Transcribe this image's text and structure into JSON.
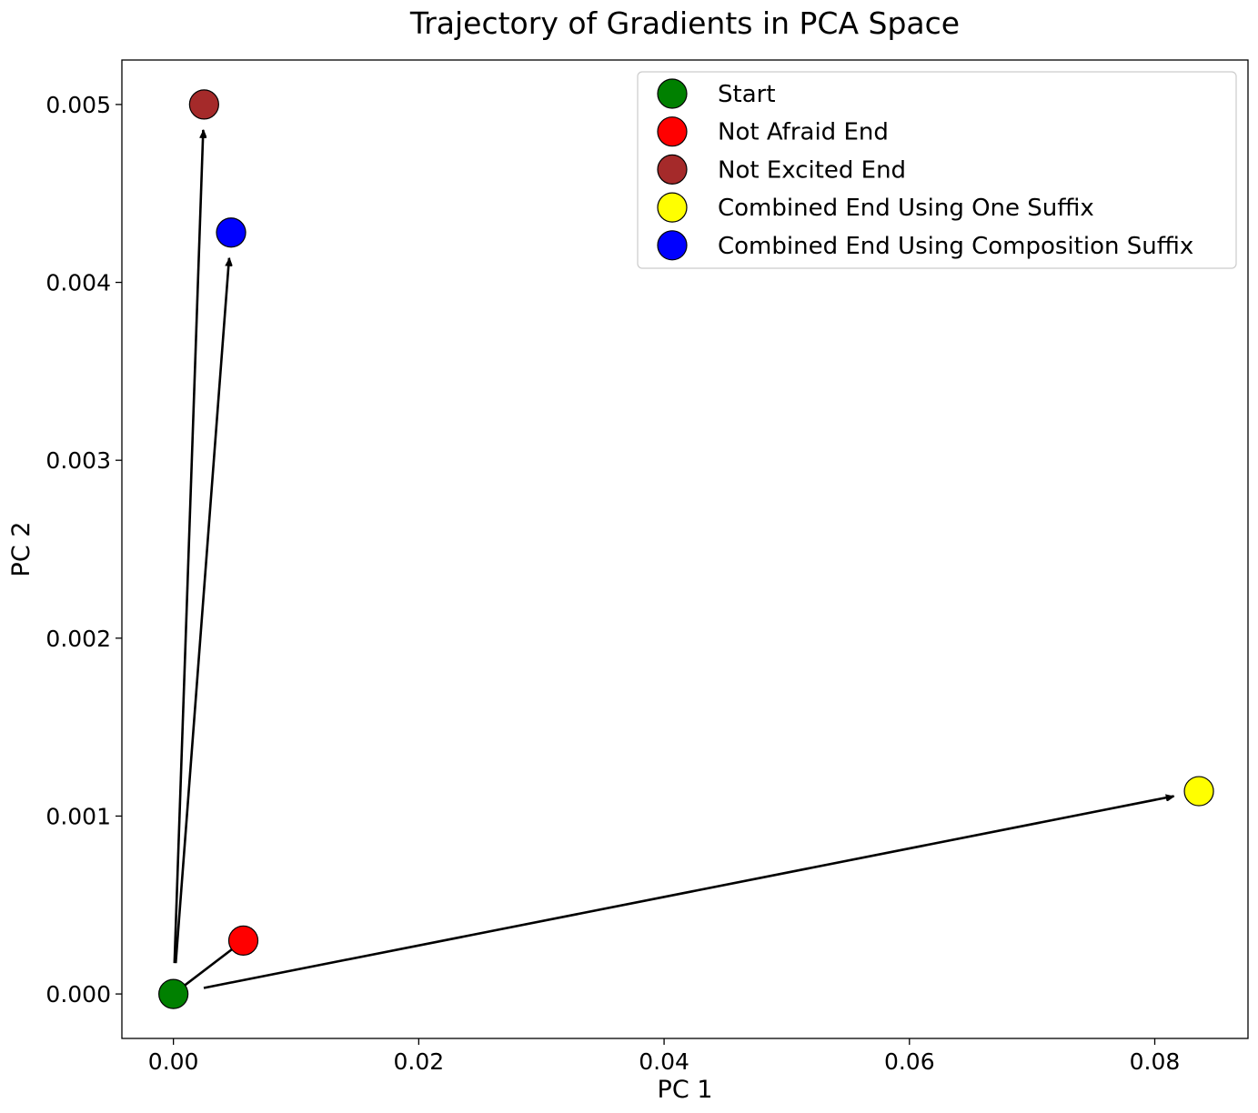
{
  "chart_data": {
    "type": "scatter",
    "title": "Trajectory of Gradients in PCA Space",
    "xlabel": "PC 1",
    "ylabel": "PC 2",
    "xlim": [
      -0.0042,
      0.0876
    ],
    "ylim": [
      -0.00025,
      0.00525
    ],
    "xticks": [
      0.0,
      0.02,
      0.04,
      0.06,
      0.08
    ],
    "xtick_labels": [
      "0.00",
      "0.02",
      "0.04",
      "0.06",
      "0.08"
    ],
    "yticks": [
      0.0,
      0.001,
      0.002,
      0.003,
      0.004,
      0.005
    ],
    "ytick_labels": [
      "0.000",
      "0.001",
      "0.002",
      "0.003",
      "0.004",
      "0.005"
    ],
    "grid": false,
    "legend_position": "top-right",
    "series": [
      {
        "name": "Start",
        "color": "#008000",
        "x": 0.0,
        "y": 0.0
      },
      {
        "name": "Not Afraid End",
        "color": "#ff0000",
        "x": 0.0057,
        "y": 0.0003
      },
      {
        "name": "Not Excited End",
        "color": "#a52a2a",
        "x": 0.0025,
        "y": 0.005
      },
      {
        "name": "Combined End Using One Suffix",
        "color": "#ffff00",
        "x": 0.0836,
        "y": 0.00114
      },
      {
        "name": "Combined End Using Composition Suffix",
        "color": "#0000ff",
        "x": 0.0047,
        "y": 0.00428
      }
    ],
    "arrows": [
      {
        "from": [
          0.0,
          0.0
        ],
        "to": [
          0.0057,
          0.0003
        ]
      },
      {
        "from": [
          0.0,
          0.0
        ],
        "to": [
          0.0025,
          0.005
        ]
      },
      {
        "from": [
          0.0,
          0.0
        ],
        "to": [
          0.0836,
          0.00114
        ]
      },
      {
        "from": [
          0.0,
          0.0
        ],
        "to": [
          0.0047,
          0.00428
        ]
      }
    ]
  }
}
